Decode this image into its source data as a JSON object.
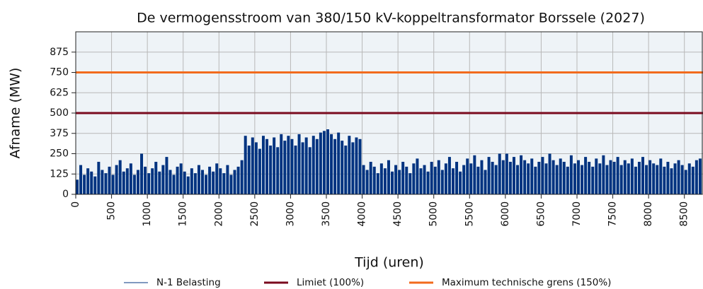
{
  "chart_data": {
    "type": "spike",
    "title": "De vermogensstroom van 380/150 kV-koppeltransformator Borssele (2027)",
    "x_label": "Tijd (uren)",
    "y_label": "Afname (MW)",
    "x": [
      0,
      50,
      100,
      150,
      200,
      250,
      300,
      350,
      400,
      450,
      500,
      550,
      600,
      650,
      700,
      750,
      800,
      850,
      900,
      950,
      1000,
      1050,
      1100,
      1150,
      1200,
      1250,
      1300,
      1350,
      1400,
      1450,
      1500,
      1550,
      1600,
      1650,
      1700,
      1750,
      1800,
      1850,
      1900,
      1950,
      2000,
      2050,
      2100,
      2150,
      2200,
      2250,
      2300,
      2350,
      2400,
      2450,
      2500,
      2550,
      2600,
      2650,
      2700,
      2750,
      2800,
      2850,
      2900,
      2950,
      3000,
      3050,
      3100,
      3150,
      3200,
      3250,
      3300,
      3350,
      3400,
      3450,
      3500,
      3550,
      3600,
      3650,
      3700,
      3750,
      3800,
      3850,
      3900,
      3950,
      4000,
      4050,
      4100,
      4150,
      4200,
      4250,
      4300,
      4350,
      4400,
      4450,
      4500,
      4550,
      4600,
      4650,
      4700,
      4750,
      4800,
      4850,
      4900,
      4950,
      5000,
      5050,
      5100,
      5150,
      5200,
      5250,
      5300,
      5350,
      5400,
      5450,
      5500,
      5550,
      5600,
      5650,
      5700,
      5750,
      5800,
      5850,
      5900,
      5950,
      6000,
      6050,
      6100,
      6150,
      6200,
      6250,
      6300,
      6350,
      6400,
      6450,
      6500,
      6550,
      6600,
      6650,
      6700,
      6750,
      6800,
      6850,
      6900,
      6950,
      7000,
      7050,
      7100,
      7150,
      7200,
      7250,
      7300,
      7350,
      7400,
      7450,
      7500,
      7550,
      7600,
      7650,
      7700,
      7750,
      7800,
      7850,
      7900,
      7950,
      8000,
      8050,
      8100,
      8150,
      8200,
      8250,
      8300,
      8350,
      8400,
      8450,
      8500,
      8550,
      8600,
      8650,
      8700
    ],
    "series": [
      {
        "name": "N-1 Belasting",
        "color": "#003380",
        "values": [
          90,
          180,
          120,
          160,
          140,
          110,
          200,
          150,
          130,
          170,
          120,
          180,
          210,
          140,
          160,
          190,
          120,
          150,
          250,
          170,
          130,
          160,
          200,
          140,
          180,
          230,
          150,
          120,
          170,
          190,
          140,
          110,
          160,
          130,
          180,
          150,
          120,
          170,
          140,
          190,
          160,
          130,
          180,
          120,
          150,
          170,
          210,
          360,
          300,
          350,
          320,
          280,
          360,
          340,
          300,
          350,
          290,
          370,
          330,
          360,
          340,
          300,
          370,
          320,
          350,
          290,
          360,
          340,
          380,
          390,
          400,
          370,
          340,
          380,
          330,
          300,
          360,
          320,
          350,
          340,
          180,
          150,
          200,
          170,
          130,
          190,
          160,
          210,
          140,
          180,
          150,
          200,
          170,
          130,
          190,
          220,
          160,
          180,
          140,
          200,
          170,
          210,
          150,
          190,
          230,
          160,
          200,
          140,
          180,
          220,
          190,
          240,
          170,
          210,
          150,
          230,
          200,
          180,
          250,
          210,
          250,
          200,
          230,
          180,
          240,
          210,
          190,
          220,
          170,
          200,
          230,
          190,
          250,
          210,
          180,
          220,
          200,
          170,
          240,
          190,
          210,
          180,
          230,
          200,
          170,
          220,
          190,
          240,
          180,
          210,
          200,
          230,
          180,
          210,
          190,
          220,
          170,
          200,
          230,
          180,
          210,
          190,
          180,
          220,
          170,
          200,
          160,
          190,
          210,
          180,
          150,
          190,
          170,
          210,
          220
        ]
      },
      {
        "name": "Limiet (100%)",
        "color": "#7a0a1e",
        "value": 500
      },
      {
        "name": "Maximum technische grens (150%)",
        "color": "#f26b1d",
        "value": 750
      }
    ],
    "xlim": [
      0,
      8760
    ],
    "ylim": [
      0,
      1000
    ],
    "xticks": [
      0,
      500,
      1000,
      1500,
      2000,
      2500,
      3000,
      3500,
      4000,
      4500,
      5000,
      5500,
      6000,
      6500,
      7000,
      7500,
      8000,
      8500
    ],
    "yticks": [
      0,
      125,
      250,
      375,
      500,
      625,
      750,
      875
    ],
    "grid": true
  }
}
